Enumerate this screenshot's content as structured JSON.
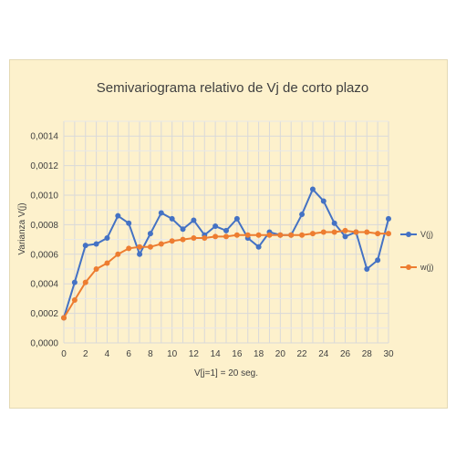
{
  "chart_data": {
    "type": "line",
    "title": "Semivariograma relativo de Vj de corto plazo",
    "xlabel": "V[j=1] = 20 seg.",
    "ylabel": "Varianza V(j)",
    "x": [
      0,
      1,
      2,
      3,
      4,
      5,
      6,
      7,
      8,
      9,
      10,
      11,
      12,
      13,
      14,
      15,
      16,
      17,
      18,
      19,
      20,
      21,
      22,
      23,
      24,
      25,
      26,
      27,
      28,
      29,
      30
    ],
    "xlim": [
      0,
      30
    ],
    "ylim": [
      0,
      0.0015
    ],
    "x_ticks": [
      "0",
      "2",
      "4",
      "6",
      "8",
      "10",
      "12",
      "14",
      "16",
      "18",
      "20",
      "22",
      "24",
      "26",
      "28",
      "30"
    ],
    "y_ticks": [
      "0,0000",
      "0,0002",
      "0,0004",
      "0,0006",
      "0,0008",
      "0,0010",
      "0,0012",
      "0,0014"
    ],
    "grid": true,
    "legend_position": "right",
    "series": [
      {
        "name": "V(j)",
        "color": "#4472c4",
        "values": [
          0.00017,
          0.00041,
          0.00066,
          0.00067,
          0.00071,
          0.00086,
          0.00081,
          0.0006,
          0.00074,
          0.00088,
          0.00084,
          0.00077,
          0.00083,
          0.00073,
          0.00079,
          0.00076,
          0.00084,
          0.00071,
          0.00065,
          0.00075,
          0.00073,
          0.00073,
          0.00087,
          0.00104,
          0.00096,
          0.00081,
          0.00072,
          0.00075,
          0.0005,
          0.00056,
          0.00084
        ]
      },
      {
        "name": "w(j)",
        "color": "#ed7d31",
        "values": [
          0.00017,
          0.00029,
          0.00041,
          0.0005,
          0.00054,
          0.0006,
          0.00064,
          0.00065,
          0.00065,
          0.00067,
          0.00069,
          0.0007,
          0.00071,
          0.00071,
          0.00072,
          0.00072,
          0.00073,
          0.00073,
          0.00073,
          0.00073,
          0.00073,
          0.00073,
          0.00073,
          0.00074,
          0.00075,
          0.00075,
          0.00076,
          0.00075,
          0.00075,
          0.00074,
          0.00074
        ]
      }
    ]
  }
}
